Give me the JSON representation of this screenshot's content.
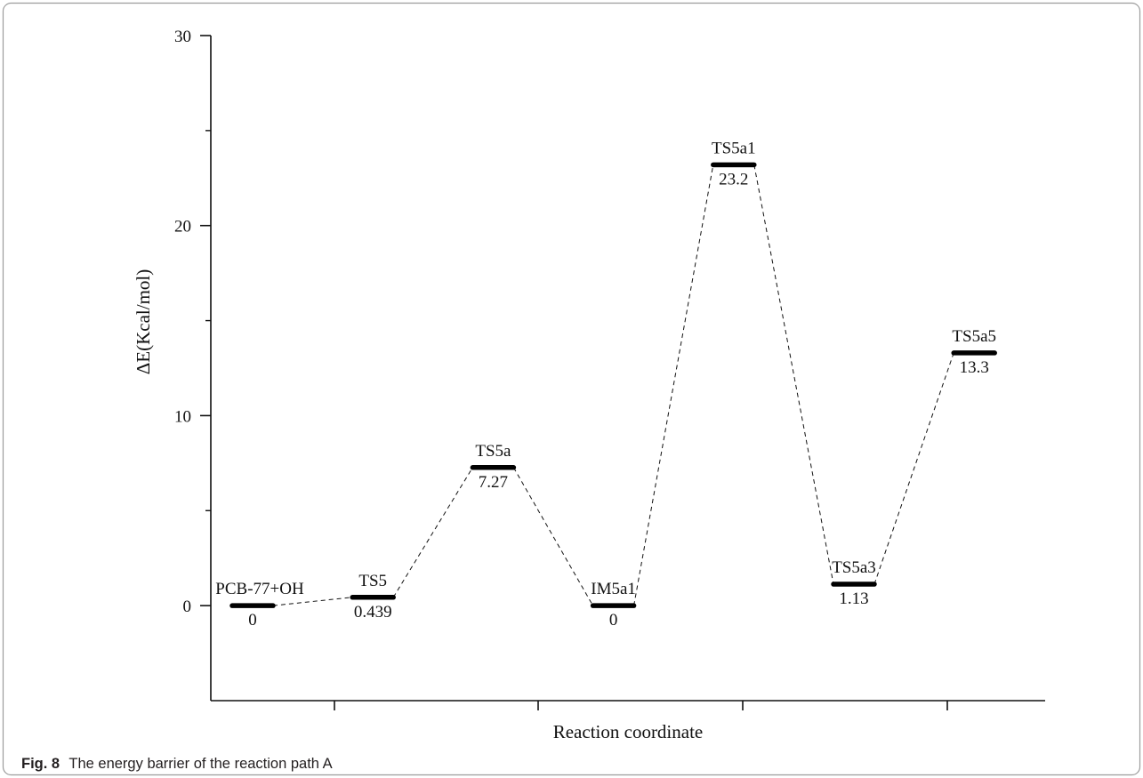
{
  "chart_data": {
    "type": "line",
    "xlabel": "Reaction coordinate",
    "ylabel": "ΔE(Kcal/mol)",
    "ylim": [
      -5,
      30
    ],
    "yticks": [
      0,
      10,
      20,
      30
    ],
    "yminor_ticks": [
      5,
      15,
      25
    ],
    "grid": false,
    "legend": "none",
    "connector_style": "dashed",
    "levels": [
      {
        "label": "PCB-77+OH",
        "value": 0,
        "value_label": "0"
      },
      {
        "label": "TS5",
        "value": 0.439,
        "value_label": "0.439"
      },
      {
        "label": "TS5a",
        "value": 7.27,
        "value_label": "7.27"
      },
      {
        "label": "IM5a1",
        "value": 0,
        "value_label": "0"
      },
      {
        "label": "TS5a1",
        "value": 23.2,
        "value_label": "23.2"
      },
      {
        "label": "TS5a3",
        "value": 1.13,
        "value_label": "1.13"
      },
      {
        "label": "TS5a5",
        "value": 13.3,
        "value_label": "13.3"
      }
    ]
  },
  "caption": {
    "fig_label": "Fig. 8",
    "text": "The energy barrier of the reaction path A"
  },
  "colors": {
    "ink": "#111111",
    "frame": "#9c9c9c"
  }
}
